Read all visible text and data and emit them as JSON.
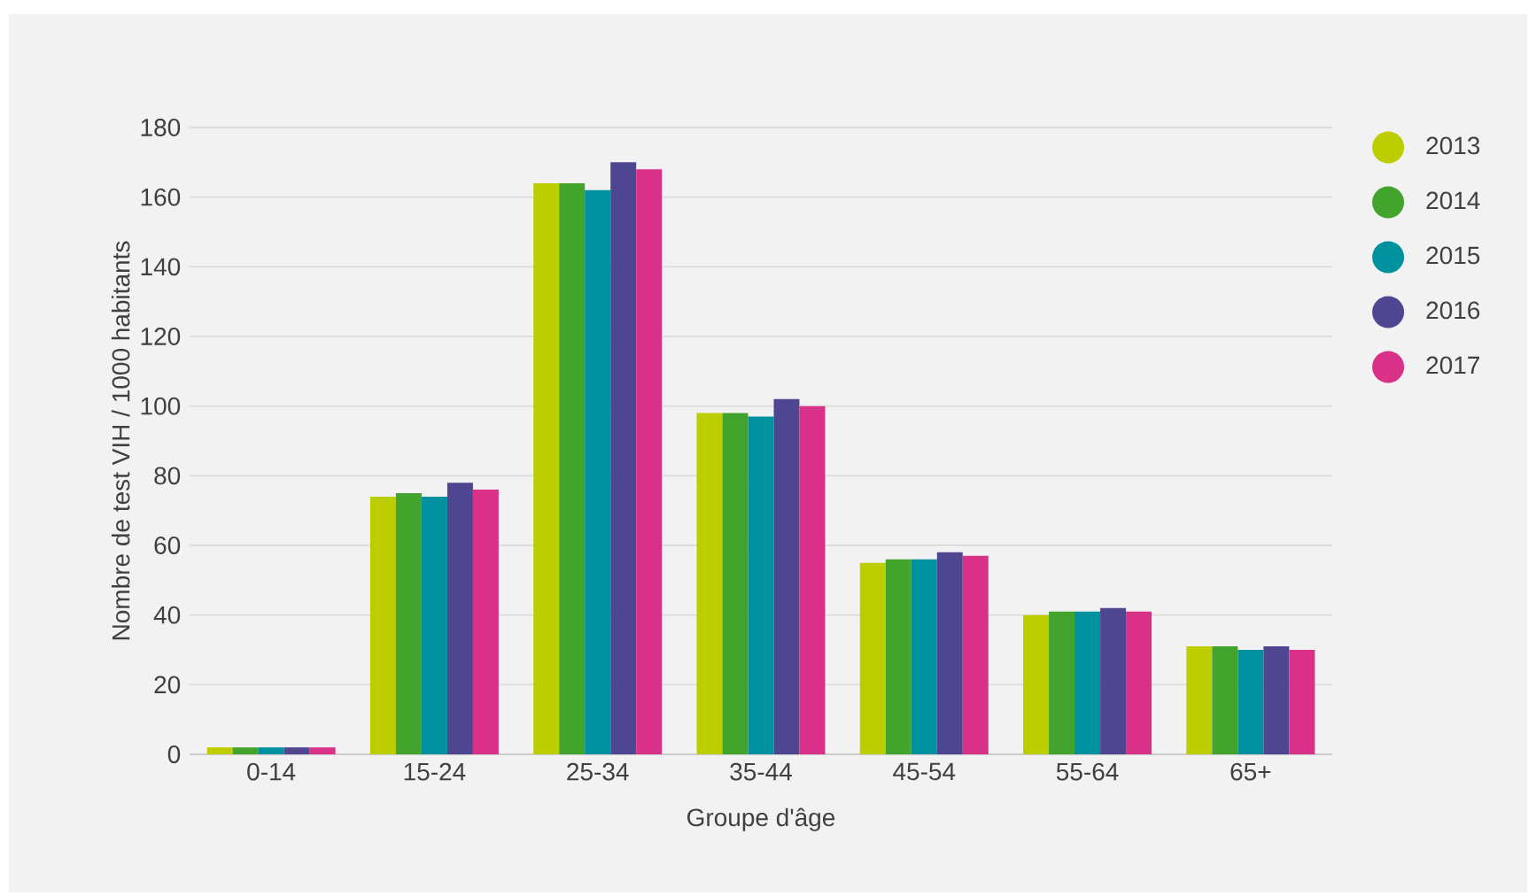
{
  "chart_data": {
    "type": "bar",
    "xlabel": "Groupe d'âge",
    "ylabel": "Nombre de test VIH / 1000 habitants",
    "categories": [
      "0-14",
      "15-24",
      "25-34",
      "35-44",
      "45-54",
      "55-64",
      "65+"
    ],
    "series": [
      {
        "name": "2013",
        "color": "#bccd00",
        "values": [
          2,
          74,
          164,
          98,
          55,
          40,
          31
        ]
      },
      {
        "name": "2014",
        "color": "#42a42c",
        "values": [
          2,
          75,
          164,
          98,
          56,
          41,
          31
        ]
      },
      {
        "name": "2015",
        "color": "#00919f",
        "values": [
          2,
          74,
          162,
          97,
          56,
          41,
          30
        ]
      },
      {
        "name": "2016",
        "color": "#4f4692",
        "values": [
          2,
          78,
          170,
          102,
          58,
          42,
          31
        ]
      },
      {
        "name": "2017",
        "color": "#d93188",
        "values": [
          2,
          76,
          168,
          100,
          57,
          41,
          30
        ]
      }
    ],
    "ylim": [
      0,
      180
    ],
    "yticks": [
      0,
      20,
      40,
      60,
      80,
      100,
      120,
      140,
      160,
      180
    ],
    "grid": "y",
    "legend": "right",
    "marker": "circle"
  }
}
